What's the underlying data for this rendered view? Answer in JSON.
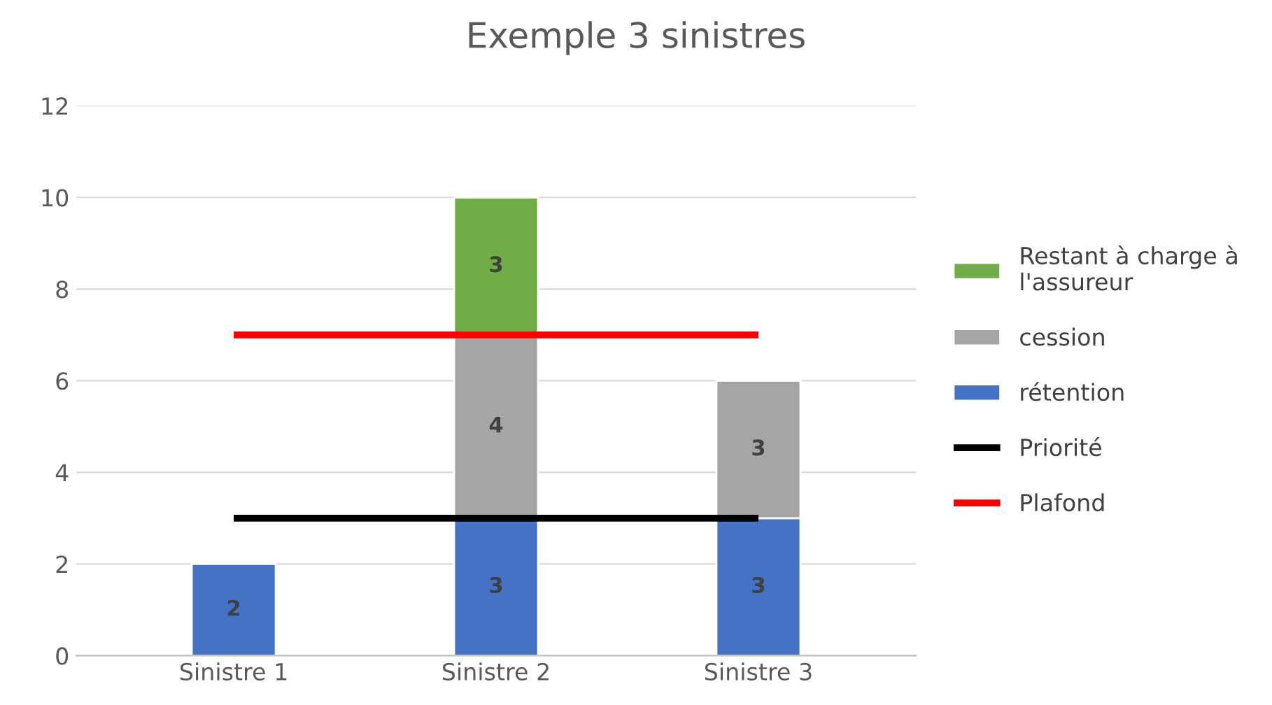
{
  "chart_data": {
    "type": "bar",
    "title": "Exemple 3 sinistres",
    "categories": [
      "Sinistre 1",
      "Sinistre 2",
      "Sinistre 3"
    ],
    "stacked": true,
    "series": [
      {
        "name": "rétention",
        "color": "#4472c4",
        "values": [
          2,
          3,
          3
        ],
        "value_labels": [
          "2",
          "3",
          "3"
        ]
      },
      {
        "name": "cession",
        "color": "#a5a5a5",
        "values": [
          null,
          4,
          3
        ],
        "value_labels": [
          null,
          "4",
          "3"
        ]
      },
      {
        "name": "Restant à charge à\nl'assureur",
        "color": "#70ad47",
        "values": [
          null,
          3,
          null
        ],
        "value_labels": [
          null,
          "3",
          null
        ]
      },
      {
        "name": "Priorité",
        "type": "line",
        "color": "#000000",
        "values": [
          3,
          3,
          3
        ]
      },
      {
        "name": "Plafond",
        "type": "line",
        "color": "#ff0000",
        "values": [
          7,
          7,
          7
        ]
      }
    ],
    "ylim": [
      0,
      12
    ],
    "yticks": [
      0,
      2,
      4,
      6,
      8,
      10,
      12
    ],
    "grid": "y",
    "legend": "right"
  }
}
